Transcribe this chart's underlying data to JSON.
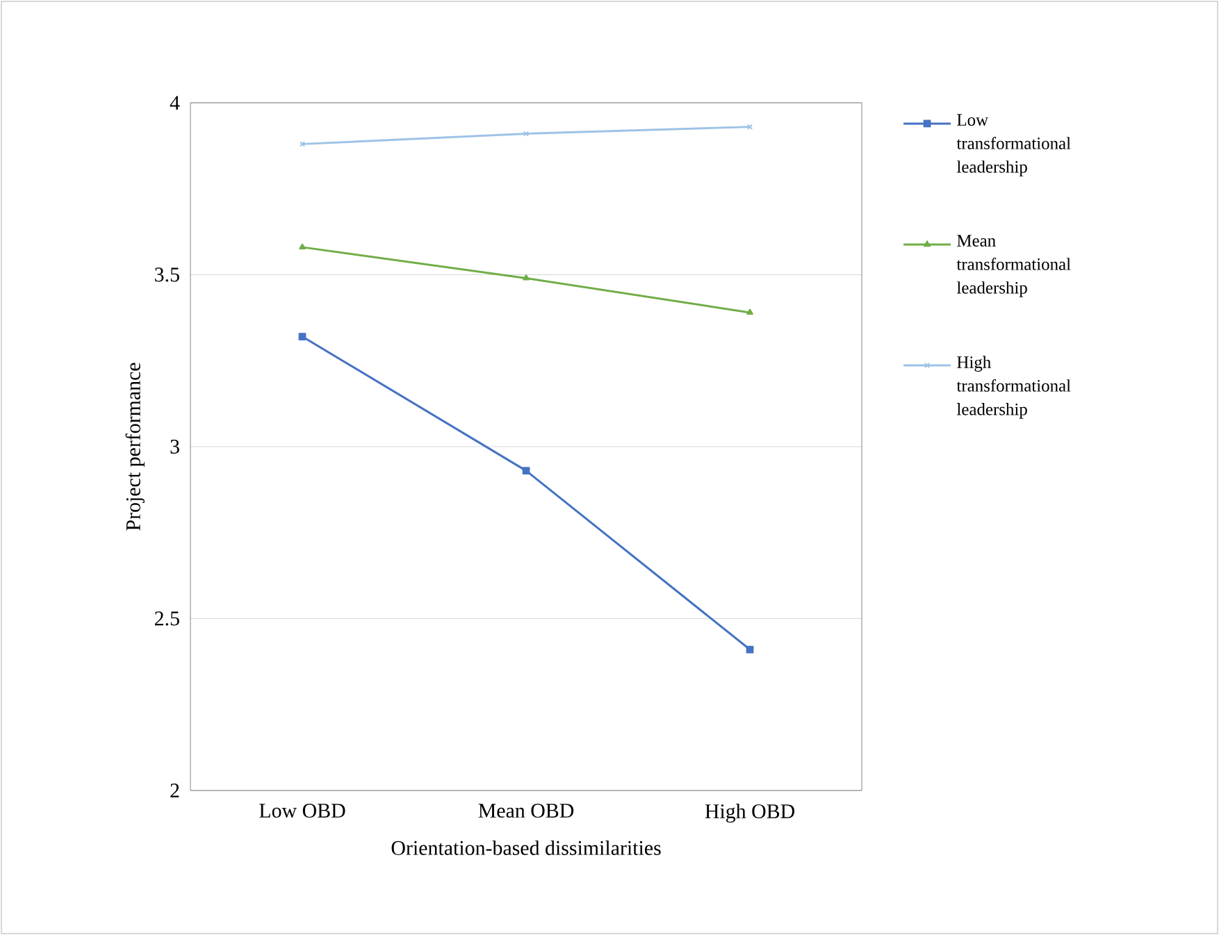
{
  "chart_data": {
    "type": "line",
    "xlabel": "Orientation-based dissimilarities",
    "ylabel": "Project performance",
    "categories": [
      "Low OBD",
      "Mean OBD",
      "High OBD"
    ],
    "series": [
      {
        "name": "Low transformational leadership",
        "color": "#4472c4",
        "marker": "square",
        "values": [
          3.32,
          2.93,
          2.41
        ]
      },
      {
        "name": "Mean transformational leadership",
        "color": "#70ad47",
        "marker": "triangle",
        "values": [
          3.58,
          3.49,
          3.39
        ]
      },
      {
        "name": "High transformational leadership",
        "color": "#9dc3e6",
        "marker": "cross",
        "values": [
          3.88,
          3.91,
          3.93
        ]
      }
    ],
    "ylim": [
      2,
      4
    ],
    "yticks": [
      2,
      2.5,
      3,
      3.5,
      4
    ],
    "grid": "y",
    "legend": "right",
    "line_style": "solid"
  }
}
